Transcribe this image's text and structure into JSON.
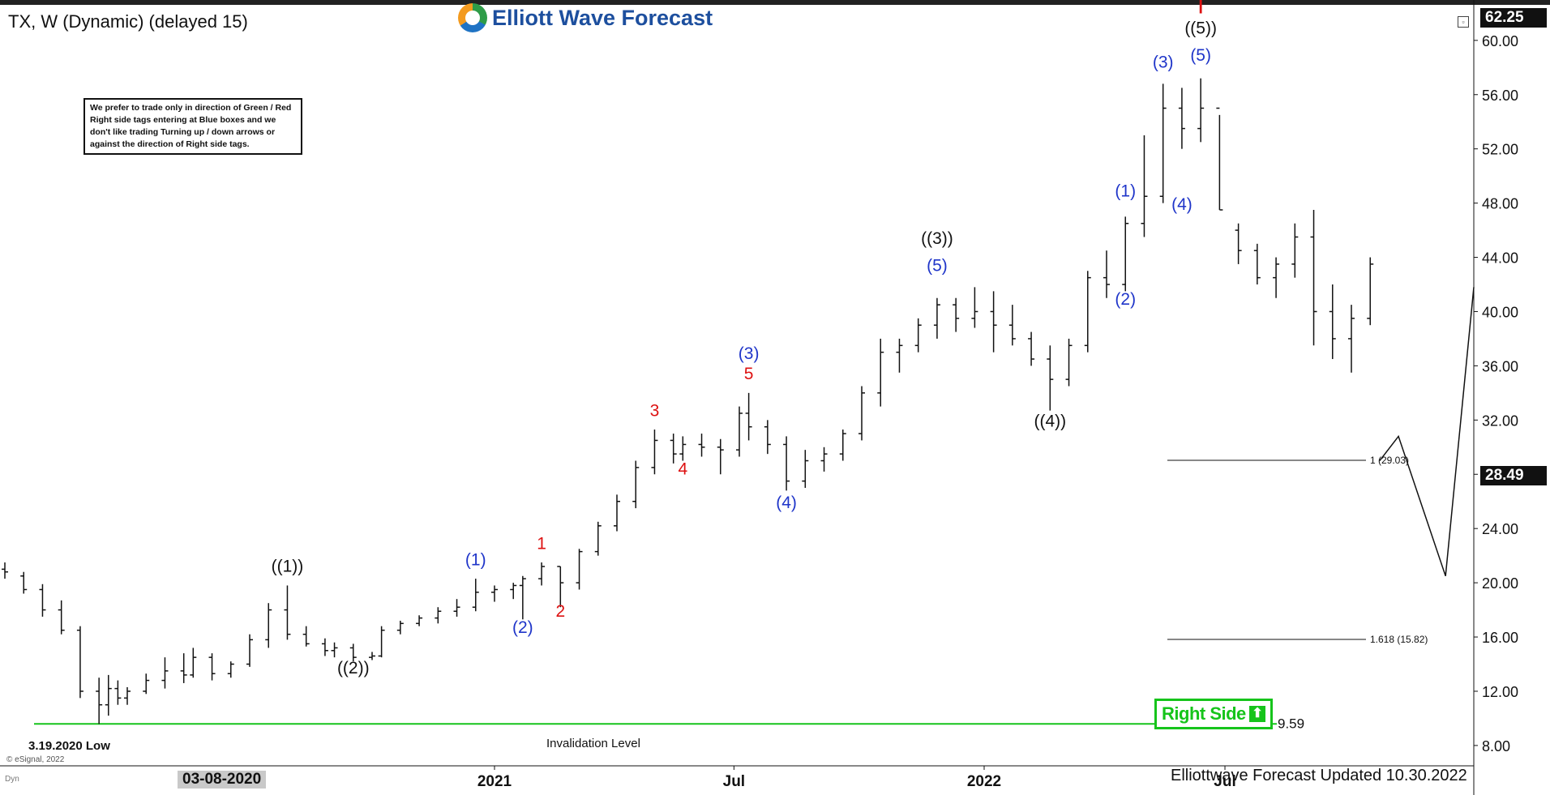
{
  "header": {
    "title": "TX, W (Dynamic) (delayed 15)",
    "logo_text": "Elliott Wave Forecast"
  },
  "note": "We prefer to trade only in direction of Green / Red Right side tags entering at Blue boxes and we don't like trading Turning up / down arrows or against the direction of Right side tags.",
  "right_side_label": "Right Side",
  "footer_text": "Elliottwave Forecast Updated 10.30.2022",
  "copyright": "© eSignal, 2022",
  "dyn_label": "Dyn",
  "low_label": "3.19.2020 Low",
  "invalidation_label": "Invalidation Level",
  "invalidation_value": "9.59",
  "last_price": "28.49",
  "top_price": "62.25",
  "date_flag": "03-08-2020",
  "colors": {
    "blue": "#1f35c9",
    "red": "#dd1111",
    "black": "#111111",
    "green": "#16c41b"
  },
  "chart_data": {
    "type": "ohlc",
    "y_axis": {
      "ticks": [
        "8.00",
        "12.00",
        "16.00",
        "20.00",
        "24.00",
        "28.00",
        "32.00",
        "36.00",
        "40.00",
        "44.00",
        "48.00",
        "52.00",
        "56.00",
        "60.00"
      ],
      "range": [
        6.5,
        62.5
      ],
      "side": "right"
    },
    "x_axis": {
      "ticks": [
        "2021",
        "Jul",
        "2022",
        "Jul"
      ],
      "start": "2020-01-06",
      "end": "2023-01-02"
    },
    "bars": [
      {
        "d": "2020-01-06",
        "o": 21,
        "h": 21.5,
        "l": 20.3,
        "c": 20.8
      },
      {
        "d": "2020-01-20",
        "o": 20.5,
        "h": 20.8,
        "l": 19.2,
        "c": 19.5
      },
      {
        "d": "2020-02-03",
        "o": 19.5,
        "h": 19.9,
        "l": 17.5,
        "c": 18
      },
      {
        "d": "2020-02-17",
        "o": 18,
        "h": 18.7,
        "l": 16.2,
        "c": 16.5
      },
      {
        "d": "2020-03-02",
        "o": 16.5,
        "h": 16.8,
        "l": 11.5,
        "c": 12
      },
      {
        "d": "2020-03-16",
        "o": 12,
        "h": 13,
        "l": 9.59,
        "c": 11
      },
      {
        "d": "2020-03-23",
        "o": 11,
        "h": 13.2,
        "l": 10.2,
        "c": 12.2
      },
      {
        "d": "2020-03-30",
        "o": 12.2,
        "h": 12.8,
        "l": 11,
        "c": 11.5
      },
      {
        "d": "2020-04-06",
        "o": 11.5,
        "h": 12.3,
        "l": 11,
        "c": 12
      },
      {
        "d": "2020-04-20",
        "o": 12,
        "h": 13.3,
        "l": 11.8,
        "c": 12.8
      },
      {
        "d": "2020-05-04",
        "o": 12.8,
        "h": 14.5,
        "l": 12.2,
        "c": 13.5
      },
      {
        "d": "2020-05-18",
        "o": 13.5,
        "h": 14.8,
        "l": 12.6,
        "c": 13.2
      },
      {
        "d": "2020-05-25",
        "o": 13.2,
        "h": 15.2,
        "l": 13,
        "c": 14.5
      },
      {
        "d": "2020-06-08",
        "o": 14.5,
        "h": 14.8,
        "l": 12.8,
        "c": 13.3
      },
      {
        "d": "2020-06-22",
        "o": 13.3,
        "h": 14.2,
        "l": 13,
        "c": 14
      },
      {
        "d": "2020-07-06",
        "o": 14,
        "h": 16.2,
        "l": 13.8,
        "c": 15.8
      },
      {
        "d": "2020-07-20",
        "o": 15.8,
        "h": 18.5,
        "l": 15.2,
        "c": 18
      },
      {
        "d": "2020-08-03",
        "o": 18,
        "h": 19.8,
        "l": 15.8,
        "c": 16.2
      },
      {
        "d": "2020-08-17",
        "o": 16.2,
        "h": 16.8,
        "l": 15.3,
        "c": 15.5
      },
      {
        "d": "2020-08-31",
        "o": 15.5,
        "h": 15.9,
        "l": 14.6,
        "c": 15
      },
      {
        "d": "2020-09-07",
        "o": 15,
        "h": 15.6,
        "l": 14.5,
        "c": 15.2
      },
      {
        "d": "2020-09-21",
        "o": 15.2,
        "h": 15.5,
        "l": 14.2,
        "c": 14.5
      },
      {
        "d": "2020-10-05",
        "o": 14.5,
        "h": 14.9,
        "l": 14.3,
        "c": 14.6
      },
      {
        "d": "2020-10-12",
        "o": 14.6,
        "h": 16.8,
        "l": 14.5,
        "c": 16.5
      },
      {
        "d": "2020-10-26",
        "o": 16.5,
        "h": 17.2,
        "l": 16.2,
        "c": 17
      },
      {
        "d": "2020-11-09",
        "o": 17,
        "h": 17.6,
        "l": 16.8,
        "c": 17.4
      },
      {
        "d": "2020-11-23",
        "o": 17.4,
        "h": 18.2,
        "l": 17,
        "c": 17.9
      },
      {
        "d": "2020-12-07",
        "o": 17.9,
        "h": 18.8,
        "l": 17.5,
        "c": 18.2
      },
      {
        "d": "2020-12-21",
        "o": 18.2,
        "h": 20.3,
        "l": 17.9,
        "c": 19.3
      },
      {
        "d": "2021-01-04",
        "o": 19.3,
        "h": 19.8,
        "l": 18.6,
        "c": 19.5
      },
      {
        "d": "2021-01-18",
        "o": 19.5,
        "h": 20,
        "l": 18.8,
        "c": 19.8
      },
      {
        "d": "2021-01-25",
        "o": 19.8,
        "h": 20.5,
        "l": 17.3,
        "c": 20.3
      },
      {
        "d": "2021-02-08",
        "o": 20.3,
        "h": 21.5,
        "l": 19.8,
        "c": 21.2
      },
      {
        "d": "2021-02-22",
        "o": 21.2,
        "h": 21.2,
        "l": 18.2,
        "c": 20
      },
      {
        "d": "2021-03-08",
        "o": 20,
        "h": 22.5,
        "l": 19.5,
        "c": 22.3
      },
      {
        "d": "2021-03-22",
        "o": 22.3,
        "h": 24.5,
        "l": 22,
        "c": 24.2
      },
      {
        "d": "2021-04-05",
        "o": 24.2,
        "h": 26.5,
        "l": 23.8,
        "c": 26
      },
      {
        "d": "2021-04-19",
        "o": 26,
        "h": 29,
        "l": 25.5,
        "c": 28.5
      },
      {
        "d": "2021-05-03",
        "o": 28.5,
        "h": 31.3,
        "l": 28,
        "c": 30.5
      },
      {
        "d": "2021-05-17",
        "o": 30.5,
        "h": 31,
        "l": 28.8,
        "c": 29.5
      },
      {
        "d": "2021-05-24",
        "o": 29.5,
        "h": 30.8,
        "l": 29,
        "c": 30.2
      },
      {
        "d": "2021-06-07",
        "o": 30.2,
        "h": 31,
        "l": 29.3,
        "c": 30
      },
      {
        "d": "2021-06-21",
        "o": 30,
        "h": 30.6,
        "l": 28,
        "c": 29.8
      },
      {
        "d": "2021-07-05",
        "o": 29.8,
        "h": 33,
        "l": 29.3,
        "c": 32.5
      },
      {
        "d": "2021-07-12",
        "o": 32.5,
        "h": 34,
        "l": 30.5,
        "c": 31.5
      },
      {
        "d": "2021-07-26",
        "o": 31.5,
        "h": 32,
        "l": 29.5,
        "c": 30.2
      },
      {
        "d": "2021-08-09",
        "o": 30.2,
        "h": 30.8,
        "l": 26.8,
        "c": 27.5
      },
      {
        "d": "2021-08-23",
        "o": 27.5,
        "h": 29.8,
        "l": 27,
        "c": 29
      },
      {
        "d": "2021-09-06",
        "o": 29,
        "h": 30,
        "l": 28.2,
        "c": 29.5
      },
      {
        "d": "2021-09-20",
        "o": 29.5,
        "h": 31.3,
        "l": 29,
        "c": 31
      },
      {
        "d": "2021-10-04",
        "o": 31,
        "h": 34.5,
        "l": 30.5,
        "c": 34
      },
      {
        "d": "2021-10-18",
        "o": 34,
        "h": 38,
        "l": 33,
        "c": 37
      },
      {
        "d": "2021-11-01",
        "o": 37,
        "h": 38,
        "l": 35.5,
        "c": 37.5
      },
      {
        "d": "2021-11-15",
        "o": 37.5,
        "h": 39.5,
        "l": 37,
        "c": 39
      },
      {
        "d": "2021-11-29",
        "o": 39,
        "h": 41,
        "l": 38,
        "c": 40.5
      },
      {
        "d": "2021-12-13",
        "o": 40.5,
        "h": 41,
        "l": 38.5,
        "c": 39.5
      },
      {
        "d": "2021-12-27",
        "o": 39.5,
        "h": 41.8,
        "l": 38.8,
        "c": 40
      },
      {
        "d": "2022-01-10",
        "o": 40,
        "h": 41.5,
        "l": 37,
        "c": 39
      },
      {
        "d": "2022-01-24",
        "o": 39,
        "h": 40.5,
        "l": 37.5,
        "c": 38
      },
      {
        "d": "2022-02-07",
        "o": 38,
        "h": 38.5,
        "l": 36,
        "c": 36.5
      },
      {
        "d": "2022-02-21",
        "o": 36.5,
        "h": 37.5,
        "l": 32.7,
        "c": 35
      },
      {
        "d": "2022-03-07",
        "o": 35,
        "h": 38,
        "l": 34.5,
        "c": 37.5
      },
      {
        "d": "2022-03-21",
        "o": 37.5,
        "h": 43,
        "l": 37,
        "c": 42.5
      },
      {
        "d": "2022-04-04",
        "o": 42.5,
        "h": 44.5,
        "l": 41,
        "c": 42
      },
      {
        "d": "2022-04-18",
        "o": 42,
        "h": 47,
        "l": 41.5,
        "c": 46.5
      },
      {
        "d": "2022-05-02",
        "o": 46.5,
        "h": 53,
        "l": 45.5,
        "c": 48.5
      },
      {
        "d": "2022-05-16",
        "o": 48.5,
        "h": 56.8,
        "l": 48,
        "c": 55
      },
      {
        "d": "2022-05-30",
        "o": 55,
        "h": 56.5,
        "l": 52,
        "c": 53.5
      },
      {
        "d": "2022-06-13",
        "o": 53.5,
        "h": 57.2,
        "l": 52.5,
        "c": 55
      },
      {
        "d": "2022-06-27",
        "o": 55,
        "h": 54.5,
        "l": 47.5,
        "c": 47.5
      },
      {
        "d": "2022-07-11",
        "o": 46,
        "h": 46.5,
        "l": 43.5,
        "c": 44.5
      },
      {
        "d": "2022-07-25",
        "o": 44.5,
        "h": 45,
        "l": 42,
        "c": 42.5
      },
      {
        "d": "2022-08-08",
        "o": 42.5,
        "h": 44,
        "l": 41,
        "c": 43.5
      },
      {
        "d": "2022-08-22",
        "o": 43.5,
        "h": 46.5,
        "l": 42.5,
        "c": 45.5
      },
      {
        "d": "2022-09-05",
        "o": 45.5,
        "h": 47.5,
        "l": 37.5,
        "c": 40
      },
      {
        "d": "2022-09-19",
        "o": 40,
        "h": 42,
        "l": 36.5,
        "c": 38
      },
      {
        "d": "2022-10-03",
        "o": 38,
        "h": 40.5,
        "l": 35.5,
        "c": 39.5
      },
      {
        "d": "2022-10-17",
        "o": 39.5,
        "h": 44,
        "l": 39,
        "c": 43.5
      }
    ],
    "projection": {
      "points": [
        {
          "x": "2022-10-24",
          "y": 29
        },
        {
          "x": "2022-11-07",
          "y": 30.8
        },
        {
          "x": "2022-12-12",
          "y": 20.5
        },
        {
          "x": "2023-01-02",
          "y": 41.8
        }
      ]
    },
    "levels": [
      {
        "label": "1 (29.03)",
        "value": 29.03
      },
      {
        "label": "1.618 (15.82)",
        "value": 15.82
      },
      {
        "label": "9.59",
        "value": 9.59
      }
    ],
    "wave_labels": [
      {
        "text": "((1))",
        "color": "black",
        "x": "2020-08-03",
        "y": 20.8
      },
      {
        "text": "((2))",
        "color": "black",
        "x": "2020-09-21",
        "y": 13.3
      },
      {
        "text": "(1)",
        "color": "blue",
        "x": "2020-12-21",
        "y": 21.3
      },
      {
        "text": "(2)",
        "color": "blue",
        "x": "2021-01-25",
        "y": 16.3
      },
      {
        "text": "1",
        "color": "red",
        "x": "2021-02-08",
        "y": 22.5
      },
      {
        "text": "2",
        "color": "red",
        "x": "2021-02-22",
        "y": 17.5
      },
      {
        "text": "3",
        "color": "red",
        "x": "2021-05-03",
        "y": 32.3
      },
      {
        "text": "4",
        "color": "red",
        "x": "2021-05-24",
        "y": 28
      },
      {
        "text": "5",
        "color": "red",
        "x": "2021-07-12",
        "y": 35
      },
      {
        "text": "(3)",
        "color": "blue",
        "x": "2021-07-12",
        "y": 36.5
      },
      {
        "text": "(4)",
        "color": "blue",
        "x": "2021-08-09",
        "y": 25.5
      },
      {
        "text": "((3))",
        "color": "black",
        "x": "2021-11-29",
        "y": 45
      },
      {
        "text": "(5)",
        "color": "blue",
        "x": "2021-11-29",
        "y": 43
      },
      {
        "text": "((4))",
        "color": "black",
        "x": "2022-02-21",
        "y": 31.5
      },
      {
        "text": "(1)",
        "color": "blue",
        "x": "2022-04-18",
        "y": 48.5
      },
      {
        "text": "(2)",
        "color": "blue",
        "x": "2022-04-18",
        "y": 40.5
      },
      {
        "text": "(3)",
        "color": "blue",
        "x": "2022-05-16",
        "y": 58
      },
      {
        "text": "(4)",
        "color": "blue",
        "x": "2022-05-30",
        "y": 47.5
      },
      {
        "text": "(5)",
        "color": "blue",
        "x": "2022-06-13",
        "y": 58.5
      },
      {
        "text": "((5))",
        "color": "black",
        "x": "2022-06-13",
        "y": 60.5
      },
      {
        "text": "I",
        "color": "red",
        "x": "2022-06-13",
        "y": 62
      }
    ]
  }
}
